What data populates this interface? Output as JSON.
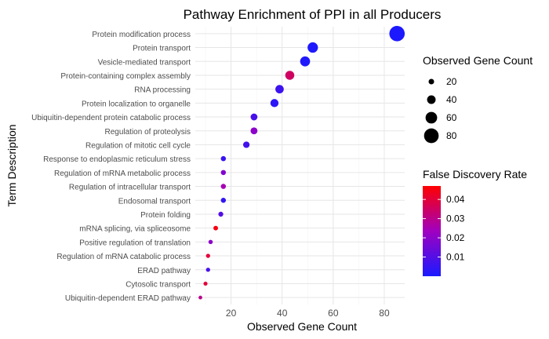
{
  "chart_data": {
    "type": "scatter",
    "title": "Pathway Enrichment of PPI in all Producers",
    "xlabel": "Observed Gene Count",
    "ylabel": "Term Description",
    "xlim": [
      6,
      88
    ],
    "x_ticks": [
      20,
      40,
      60,
      80
    ],
    "grid": true,
    "points": [
      {
        "term": "Protein modification process",
        "count": 85,
        "fdr": 0.0005
      },
      {
        "term": "Protein transport",
        "count": 52,
        "fdr": 0.0008
      },
      {
        "term": "Vesicle-mediated transport",
        "count": 49,
        "fdr": 0.001
      },
      {
        "term": "Protein-containing complex assembly",
        "count": 43,
        "fdr": 0.035
      },
      {
        "term": "RNA processing",
        "count": 39,
        "fdr": 0.006
      },
      {
        "term": "Protein localization to organelle",
        "count": 37,
        "fdr": 0.003
      },
      {
        "term": "Ubiquitin-dependent protein catabolic process",
        "count": 29,
        "fdr": 0.008
      },
      {
        "term": "Regulation of proteolysis",
        "count": 29,
        "fdr": 0.02
      },
      {
        "term": "Regulation of mitotic cell cycle",
        "count": 26,
        "fdr": 0.007
      },
      {
        "term": "Response to endoplasmic reticulum stress",
        "count": 17,
        "fdr": 0.005
      },
      {
        "term": "Regulation of mRNA metabolic process",
        "count": 17,
        "fdr": 0.018
      },
      {
        "term": "Regulation of intracellular transport",
        "count": 17,
        "fdr": 0.025
      },
      {
        "term": "Endosomal transport",
        "count": 17,
        "fdr": 0.004
      },
      {
        "term": "Protein folding",
        "count": 16,
        "fdr": 0.01
      },
      {
        "term": "mRNA splicing, via spliceosome",
        "count": 14,
        "fdr": 0.045
      },
      {
        "term": "Positive regulation of translation",
        "count": 12,
        "fdr": 0.02
      },
      {
        "term": "Regulation of mRNA catabolic process",
        "count": 11,
        "fdr": 0.04
      },
      {
        "term": "ERAD pathway",
        "count": 11,
        "fdr": 0.008
      },
      {
        "term": "Cytosolic transport",
        "count": 10,
        "fdr": 0.04
      },
      {
        "term": "Ubiquitin-dependent ERAD pathway",
        "count": 8,
        "fdr": 0.03
      }
    ],
    "size_legend": {
      "title": "Observed Gene Count",
      "values": [
        20,
        40,
        60,
        80
      ],
      "labels": [
        "20",
        "40",
        "60",
        "80"
      ]
    },
    "color_legend": {
      "title": "False Discovery Rate",
      "min": 0.0,
      "max": 0.047,
      "ticks": [
        0.01,
        0.02,
        0.03,
        0.04
      ],
      "tick_labels": [
        "0.01",
        "0.02",
        "0.03",
        "0.04"
      ],
      "low_color": "#1a1aff",
      "high_color": "#ff0000"
    },
    "legend_position": "right"
  }
}
